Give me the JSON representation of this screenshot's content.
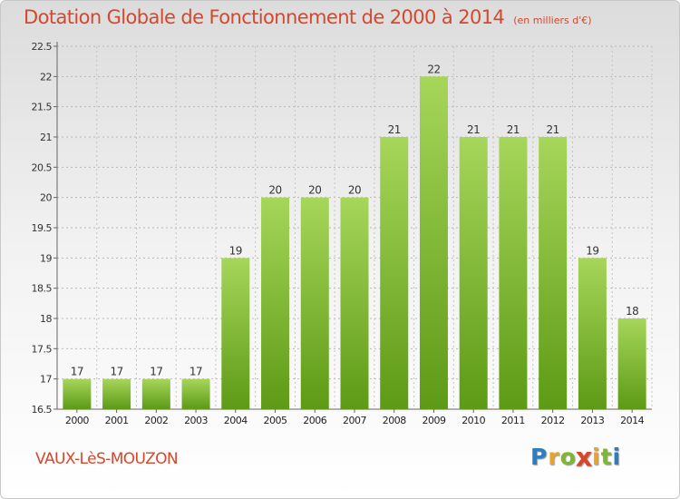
{
  "header": {
    "title": "Dotation Globale de Fonctionnement de 2000 à 2014",
    "subtitle": "(en milliers d'€)"
  },
  "footer": {
    "commune": "VAUX-LèS-MOUZON",
    "logo": {
      "letters": [
        "P",
        "r",
        "o",
        "x",
        "i",
        "t",
        "i"
      ],
      "colors": [
        "#2b7ec1",
        "#e8a32c",
        "#7cb92f",
        "#d6472c",
        "#e8a32c",
        "#7cb92f",
        "#2b7ec1"
      ]
    }
  },
  "colors": {
    "accent": "#d6472c",
    "bar_light": "#a6d65a",
    "bar_dark": "#5d9a15"
  },
  "chart_data": {
    "type": "bar",
    "title": "Dotation Globale de Fonctionnement de 2000 à 2014",
    "subtitle": "(en milliers d'€)",
    "categories": [
      "2000",
      "2001",
      "2002",
      "2003",
      "2004",
      "2005",
      "2006",
      "2007",
      "2008",
      "2009",
      "2010",
      "2011",
      "2012",
      "2013",
      "2014"
    ],
    "values": [
      17,
      17,
      17,
      17,
      19,
      20,
      20,
      20,
      21,
      22,
      21,
      21,
      21,
      19,
      18
    ],
    "data_labels": [
      "17",
      "17",
      "17",
      "17",
      "19",
      "20",
      "20",
      "20",
      "21",
      "22",
      "21",
      "21",
      "21",
      "19",
      "18"
    ],
    "yticks": [
      "16.5",
      "17",
      "17.5",
      "18",
      "18.5",
      "19",
      "19.5",
      "20",
      "20.5",
      "21",
      "21.5",
      "22",
      "22.5"
    ],
    "ylim": [
      16.5,
      22.5
    ],
    "xlabel": "",
    "ylabel": "",
    "grid": true
  }
}
